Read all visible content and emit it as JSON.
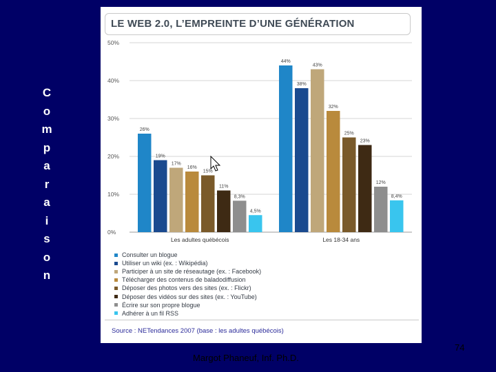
{
  "slide": {
    "side_title_letters": [
      "C",
      "o",
      "m",
      "p",
      "a",
      "r",
      "a",
      "i",
      "s",
      "o",
      "n"
    ],
    "author": "Margot Phaneuf, Inf. Ph.D.",
    "page_number": "74",
    "background_color": "#000066"
  },
  "chart_data": {
    "type": "bar",
    "title": "LE WEB 2.0, L’EMPREINTE D’UNE GÉNÉRATION",
    "categories": [
      "Les adultes québécois",
      "Les 18-34 ans"
    ],
    "ylim": [
      0,
      50
    ],
    "yticks": [
      0,
      10,
      20,
      30,
      40,
      50
    ],
    "ytick_labels": [
      "0%",
      "10%",
      "20%",
      "30%",
      "40%",
      "50%"
    ],
    "grid": true,
    "series": [
      {
        "name": "Consulter un blogue",
        "color": "#1f86c8",
        "values": [
          26,
          44
        ],
        "labels": [
          "26%",
          "44%"
        ]
      },
      {
        "name": "Utiliser un wiki (ex. : Wikipédia)",
        "color": "#1a4a8f",
        "values": [
          19,
          38
        ],
        "labels": [
          "19%",
          "38%"
        ]
      },
      {
        "name": "Participer à un site de réseautage (ex. : Facebook)",
        "color": "#bfa77a",
        "values": [
          17,
          43
        ],
        "labels": [
          "17%",
          "43%"
        ]
      },
      {
        "name": "Télécharger des contenus de baladodiffusion",
        "color": "#b98a3c",
        "values": [
          16,
          32
        ],
        "labels": [
          "16%",
          "32%"
        ]
      },
      {
        "name": "Déposer des photos vers des sites (ex. : Flickr)",
        "color": "#7a5a2a",
        "values": [
          15,
          25
        ],
        "labels": [
          "15%",
          "25%"
        ]
      },
      {
        "name": "Déposer des vidéos sur des sites (ex. : YouTube)",
        "color": "#3e2a14",
        "values": [
          11,
          23
        ],
        "labels": [
          "11%",
          "23%"
        ]
      },
      {
        "name": "Écrire sur son propre blogue",
        "color": "#8e8e8e",
        "values": [
          8.3,
          12
        ],
        "labels": [
          "8,3%",
          "12%"
        ]
      },
      {
        "name": "Adhérer à un fil RSS",
        "color": "#39c5ee",
        "values": [
          4.5,
          8.4
        ],
        "labels": [
          "4,5%",
          "8,4%"
        ]
      }
    ],
    "source": "Source : NETendances 2007 (base : les adultes québécois)"
  }
}
